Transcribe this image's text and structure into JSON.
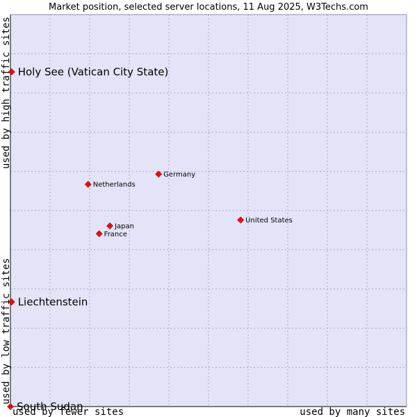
{
  "chart_data": {
    "type": "scatter",
    "title": "Market position, selected server locations, 11 Aug 2025, W3Techs.com",
    "x_axis": {
      "low_label": "used by fewer sites",
      "high_label": "used by many sites",
      "range": [
        0,
        100
      ]
    },
    "y_axis": {
      "low_label": "used by low traffic sites",
      "high_label": "used by high traffic sites",
      "range": [
        0,
        100
      ]
    },
    "grid": true,
    "colors": {
      "plot_background": "#e4e4f8",
      "grid": "#a8a8c8",
      "frame": "#000000",
      "marker": "#ff0000"
    },
    "points": [
      {
        "label": "Holy See (Vatican City State)",
        "x": 0.3,
        "y": 85.4,
        "emphasis": "large"
      },
      {
        "label": "Germany",
        "x": 37.4,
        "y": 59.3,
        "emphasis": "small"
      },
      {
        "label": "Netherlands",
        "x": 19.6,
        "y": 56.7,
        "emphasis": "small"
      },
      {
        "label": "United States",
        "x": 58.1,
        "y": 47.6,
        "emphasis": "small"
      },
      {
        "label": "Japan",
        "x": 25.1,
        "y": 46.1,
        "emphasis": "small"
      },
      {
        "label": "France",
        "x": 22.4,
        "y": 44.1,
        "emphasis": "small"
      },
      {
        "label": "Liechtenstein",
        "x": 0.3,
        "y": 26.7,
        "emphasis": "large"
      },
      {
        "label": "South Sudan",
        "x": 0.0,
        "y": 0.0,
        "emphasis": "large"
      }
    ]
  }
}
